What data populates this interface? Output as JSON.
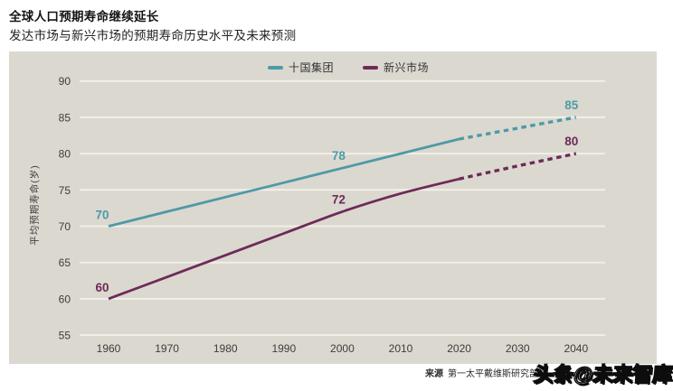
{
  "header": {
    "title": "全球人口预期寿命继续延长",
    "subtitle": "发达市场与新兴市场的预期寿命历史水平及未来预测"
  },
  "chart_data": {
    "type": "line",
    "title": "全球人口预期寿命继续延长",
    "subtitle": "发达市场与新兴市场的预期寿命历史水平及未来预测",
    "ylabel": "平均预期寿命(岁)",
    "xlabel": "",
    "x": [
      1960,
      1970,
      1980,
      1990,
      2000,
      2010,
      2020,
      2030,
      2040
    ],
    "yticks": [
      55,
      60,
      65,
      70,
      75,
      80,
      85,
      90
    ],
    "ylim": [
      55,
      90
    ],
    "grid": "horizontal-white",
    "legend_position": "top-center",
    "forecast_dashed_from": 2020,
    "series": [
      {
        "name": "十国集团",
        "color": "#4E9AA6",
        "values": [
          70,
          72,
          74,
          76,
          78,
          80,
          82,
          83.5,
          85
        ],
        "point_labels": [
          {
            "x": 1960,
            "text": "70"
          },
          {
            "x": 2000,
            "text": "78"
          },
          {
            "x": 2040,
            "text": "85"
          }
        ]
      },
      {
        "name": "新兴市场",
        "color": "#6E2A57",
        "values": [
          60,
          63,
          66,
          69,
          72,
          74.5,
          76.5,
          78.3,
          80
        ],
        "point_labels": [
          {
            "x": 1960,
            "text": "60"
          },
          {
            "x": 2000,
            "text": "72"
          },
          {
            "x": 2040,
            "text": "80"
          }
        ]
      }
    ],
    "source_label": "来源",
    "source_text": "第一太平戴维斯研究部"
  },
  "watermark": {
    "text": "头条@未来智库"
  },
  "colors": {
    "panel_bg": "#DBD8D0",
    "gridline": "#F2EFE9",
    "tick_text": "#3D3D3D",
    "teal": "#4E9AA6",
    "plum": "#6E2A57"
  }
}
